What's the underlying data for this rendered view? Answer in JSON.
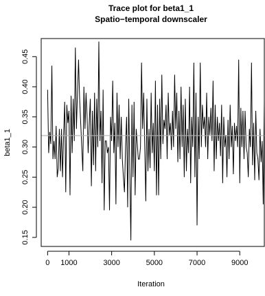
{
  "chart_data": {
    "type": "line",
    "title": "Trace plot for beta1_1",
    "subtitle": "Spatio−temporal downscaler",
    "xlabel": "Iteration",
    "ylabel": "beta1_1",
    "xlim": [
      -300,
      10150
    ],
    "ylim": [
      0.135,
      0.48
    ],
    "x_ticks": [
      0,
      1000,
      3000,
      5000,
      7000,
      9000
    ],
    "x_tick_labels": [
      "0",
      "1000",
      "3000",
      "5000",
      "7000",
      "9000"
    ],
    "y_ticks": [
      0.15,
      0.2,
      0.25,
      0.3,
      0.35,
      0.4,
      0.45
    ],
    "y_tick_labels": [
      "0.15",
      "0.20",
      "0.25",
      "0.30",
      "0.35",
      "0.40",
      "0.45"
    ],
    "mean_line": 0.319,
    "line_color": "#000000",
    "mean_line_color": "#b0b0b0",
    "grid": false,
    "series": [
      {
        "x_start": 0,
        "x_step": 50,
        "values": [
          0.395,
          0.29,
          0.325,
          0.305,
          0.435,
          0.28,
          0.31,
          0.28,
          0.335,
          0.25,
          0.265,
          0.33,
          0.26,
          0.33,
          0.25,
          0.32,
          0.375,
          0.225,
          0.37,
          0.34,
          0.36,
          0.22,
          0.385,
          0.29,
          0.38,
          0.31,
          0.465,
          0.33,
          0.39,
          0.445,
          0.38,
          0.34,
          0.3,
          0.26,
          0.4,
          0.33,
          0.39,
          0.35,
          0.29,
          0.34,
          0.38,
          0.235,
          0.36,
          0.27,
          0.39,
          0.26,
          0.38,
          0.3,
          0.475,
          0.31,
          0.36,
          0.24,
          0.395,
          0.195,
          0.31,
          0.31,
          0.29,
          0.3,
          0.195,
          0.35,
          0.31,
          0.41,
          0.29,
          0.34,
          0.205,
          0.39,
          0.3,
          0.37,
          0.28,
          0.35,
          0.28,
          0.25,
          0.225,
          0.3,
          0.35,
          0.2,
          0.38,
          0.26,
          0.145,
          0.37,
          0.25,
          0.375,
          0.22,
          0.33,
          0.305,
          0.28,
          0.28,
          0.3,
          0.44,
          0.33,
          0.39,
          0.3,
          0.21,
          0.38,
          0.26,
          0.33,
          0.265,
          0.39,
          0.29,
          0.34,
          0.26,
          0.41,
          0.22,
          0.37,
          0.22,
          0.38,
          0.28,
          0.42,
          0.305,
          0.345,
          0.33,
          0.37,
          0.28,
          0.39,
          0.32,
          0.34,
          0.295,
          0.36,
          0.3,
          0.42,
          0.33,
          0.39,
          0.275,
          0.36,
          0.28,
          0.4,
          0.3,
          0.37,
          0.25,
          0.38,
          0.26,
          0.33,
          0.29,
          0.4,
          0.24,
          0.35,
          0.3,
          0.44,
          0.25,
          0.39,
          0.17,
          0.35,
          0.28,
          0.44,
          0.3,
          0.37,
          0.33,
          0.35,
          0.3,
          0.39,
          0.28,
          0.35,
          0.32,
          0.365,
          0.31,
          0.41,
          0.26,
          0.37,
          0.28,
          0.35,
          0.31,
          0.34,
          0.285,
          0.37,
          0.24,
          0.35,
          0.3,
          0.32,
          0.25,
          0.345,
          0.28,
          0.37,
          0.3,
          0.335,
          0.255,
          0.34,
          0.31,
          0.335,
          0.3,
          0.445,
          0.24,
          0.365,
          0.3,
          0.36,
          0.28,
          0.36,
          0.3,
          0.29,
          0.25,
          0.33,
          0.3,
          0.44,
          0.27,
          0.34,
          0.245,
          0.36,
          0.29,
          0.28,
          0.245,
          0.33,
          0.275,
          0.31,
          0.205,
          0.375
        ]
      }
    ]
  }
}
